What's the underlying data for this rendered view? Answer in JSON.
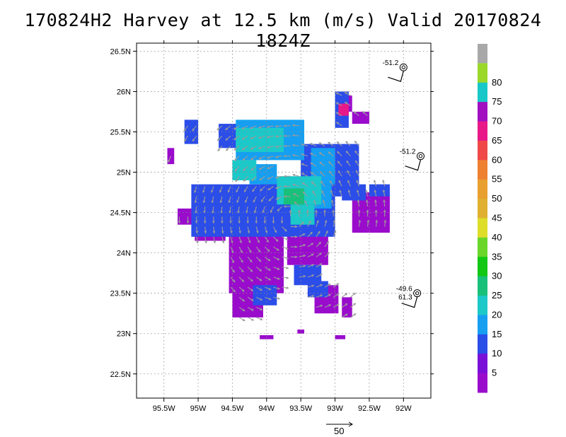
{
  "title": "170824H2 Harvey at 12.5 km (m/s) Valid 20170824 1824Z",
  "map": {
    "lon_range": [
      -95.9,
      -91.6
    ],
    "lat_range": [
      22.2,
      26.6
    ],
    "lon_ticks": [
      {
        "v": -95.5,
        "label": "95.5W"
      },
      {
        "v": -95.0,
        "label": "95W"
      },
      {
        "v": -94.5,
        "label": "94.5W"
      },
      {
        "v": -94.0,
        "label": "94W"
      },
      {
        "v": -93.5,
        "label": "93.5W"
      },
      {
        "v": -93.0,
        "label": "93W"
      },
      {
        "v": -92.5,
        "label": "92.5W"
      },
      {
        "v": -92.0,
        "label": "92W"
      }
    ],
    "lat_ticks": [
      {
        "v": 26.5,
        "label": "26.5N"
      },
      {
        "v": 26.0,
        "label": "26N"
      },
      {
        "v": 25.5,
        "label": "25.5N"
      },
      {
        "v": 25.0,
        "label": "25N"
      },
      {
        "v": 24.5,
        "label": "24.5N"
      },
      {
        "v": 24.0,
        "label": "24N"
      },
      {
        "v": 23.5,
        "label": "23.5N"
      },
      {
        "v": 23.0,
        "label": "23N"
      },
      {
        "v": 22.5,
        "label": "22.5N"
      }
    ],
    "grid": "dotted"
  },
  "colorbar": {
    "bins": [
      {
        "label": "5",
        "color": "#9a0ccc"
      },
      {
        "label": "10",
        "color": "#7a10d8"
      },
      {
        "label": "15",
        "color": "#2b4de8"
      },
      {
        "label": "20",
        "color": "#169ff0"
      },
      {
        "label": "25",
        "color": "#1cc8c8"
      },
      {
        "label": "30",
        "color": "#18c07a"
      },
      {
        "label": "35",
        "color": "#12c814"
      },
      {
        "label": "40",
        "color": "#6ad62a"
      },
      {
        "label": "45",
        "color": "#dede2a"
      },
      {
        "label": "50",
        "color": "#e0b030"
      },
      {
        "label": "55",
        "color": "#e8a030"
      },
      {
        "label": "60",
        "color": "#ee8032"
      },
      {
        "label": "65",
        "color": "#f04848"
      },
      {
        "label": "70",
        "color": "#e81888"
      },
      {
        "label": "75",
        "color": "#a010c0"
      },
      {
        "label": "80",
        "color": "#18c8c8"
      },
      {
        "label": "",
        "color": "#9ad82a"
      }
    ],
    "top_color": "#a8a8a8"
  },
  "observations": [
    {
      "lon": -92.0,
      "lat": 26.3,
      "label": "-51.2"
    },
    {
      "lon": -91.75,
      "lat": 25.2,
      "label": "-51.2"
    },
    {
      "lon": -91.8,
      "lat": 23.5,
      "label": "-49.6",
      "label2": "61.3"
    }
  ],
  "reference_vector": {
    "label": "50"
  },
  "chart_data": {
    "type": "heatmap",
    "title": "170824H2 Harvey at 12.5 km (m/s) Valid 20170824 1824Z",
    "field": "wind speed at 12.5 km (m/s)",
    "x_ticks": [
      "95.5W",
      "95W",
      "94.5W",
      "94W",
      "93.5W",
      "93W",
      "92.5W",
      "92W"
    ],
    "y_ticks": [
      "26.5N",
      "26N",
      "25.5N",
      "25N",
      "24.5N",
      "24N",
      "23.5N",
      "23N",
      "22.5N"
    ],
    "xlim": [
      -95.9,
      -91.6
    ],
    "ylim": [
      22.2,
      26.6
    ],
    "colorbar_labels": [
      "5",
      "10",
      "15",
      "20",
      "25",
      "30",
      "35",
      "40",
      "45",
      "50",
      "55",
      "60",
      "65",
      "70",
      "75",
      "80"
    ],
    "regions": [
      {
        "name": "purple",
        "level": 5,
        "color": "#9a0ccc",
        "cells": [
          [
            -93.7,
            24.3,
            -93.1,
            23.85
          ],
          [
            -94.55,
            24.5,
            -93.75,
            23.5
          ],
          [
            -94.5,
            23.7,
            -94.05,
            23.2
          ],
          [
            -95.3,
            24.55,
            -94.85,
            24.35
          ],
          [
            -95.05,
            24.35,
            -94.6,
            24.15
          ],
          [
            -93.3,
            23.6,
            -92.95,
            23.25
          ],
          [
            -92.9,
            23.45,
            -92.75,
            23.2
          ],
          [
            -92.75,
            24.75,
            -92.2,
            24.25
          ],
          [
            -95.45,
            25.3,
            -95.35,
            25.1
          ],
          [
            -92.9,
            25.95,
            -92.75,
            25.75
          ],
          [
            -92.75,
            25.75,
            -92.5,
            25.6
          ],
          [
            -94.1,
            22.98,
            -93.9,
            22.93
          ],
          [
            -93.0,
            22.98,
            -92.85,
            22.93
          ],
          [
            -93.55,
            23.05,
            -93.45,
            23.0
          ]
        ]
      },
      {
        "name": "blue",
        "level": 10,
        "color": "#2b4de8",
        "cells": [
          [
            -95.1,
            24.85,
            -94.1,
            24.2
          ],
          [
            -94.1,
            24.9,
            -93.0,
            24.2
          ],
          [
            -94.7,
            25.6,
            -94.05,
            25.3
          ],
          [
            -94.35,
            24.7,
            -93.85,
            24.5
          ],
          [
            -95.2,
            25.65,
            -95.0,
            25.35
          ],
          [
            -93.5,
            25.35,
            -92.65,
            24.7
          ],
          [
            -93.0,
            26.0,
            -92.8,
            25.55
          ],
          [
            -92.9,
            24.85,
            -92.55,
            24.65
          ],
          [
            -92.5,
            24.85,
            -92.2,
            24.7
          ],
          [
            -93.6,
            23.85,
            -93.2,
            23.6
          ],
          [
            -94.2,
            23.6,
            -93.85,
            23.35
          ],
          [
            -93.4,
            23.65,
            -93.1,
            23.45
          ]
        ]
      },
      {
        "name": "lightblue",
        "level": 15,
        "color": "#169ff0",
        "cells": [
          [
            -94.45,
            25.65,
            -93.45,
            25.15
          ],
          [
            -93.35,
            25.3,
            -93.0,
            24.85
          ],
          [
            -94.25,
            25.1,
            -93.85,
            24.85
          ],
          [
            -93.3,
            24.85,
            -93.05,
            24.55
          ]
        ]
      },
      {
        "name": "cyan",
        "level": 20,
        "color": "#1cc8c8",
        "cells": [
          [
            -94.45,
            25.55,
            -93.75,
            25.25
          ],
          [
            -94.5,
            25.15,
            -94.15,
            24.9
          ],
          [
            -93.85,
            24.95,
            -93.2,
            24.6
          ],
          [
            -93.65,
            24.6,
            -93.3,
            24.35
          ]
        ]
      },
      {
        "name": "green",
        "level": 25,
        "color": "#18c07a",
        "cells": [
          [
            -93.75,
            24.8,
            -93.45,
            24.6
          ]
        ]
      },
      {
        "name": "magenta",
        "level": 65,
        "color": "#e81888",
        "cells": [
          [
            -92.95,
            25.85,
            -92.8,
            25.7
          ]
        ]
      }
    ],
    "observations": [
      {
        "lon": -92.0,
        "lat": 26.3,
        "value": -51.2
      },
      {
        "lon": -91.75,
        "lat": 25.2,
        "value": -51.2
      },
      {
        "lon": -91.8,
        "lat": 23.5,
        "value": -49.6,
        "value2": 61.3
      }
    ]
  }
}
